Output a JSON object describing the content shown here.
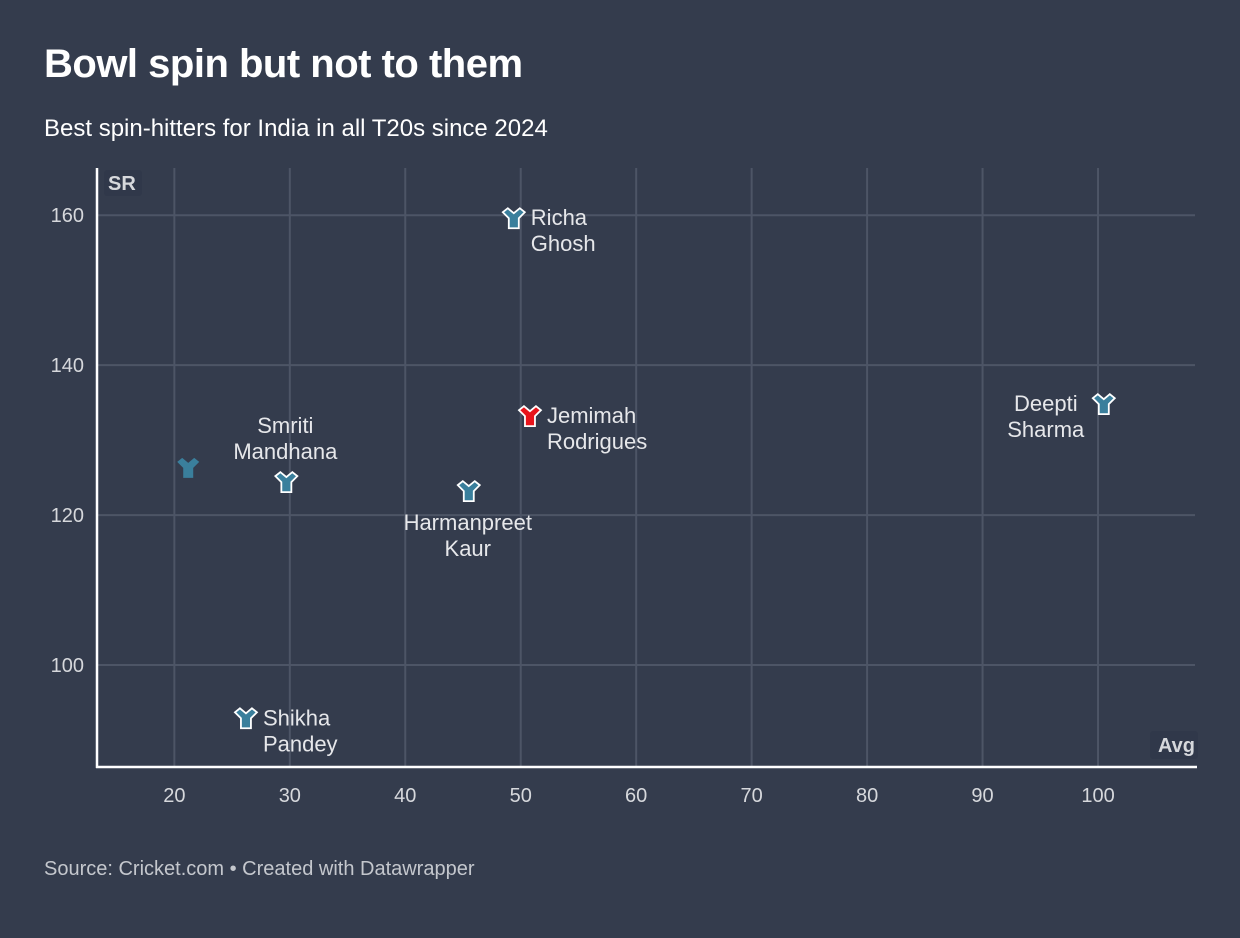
{
  "header": {
    "title": "Bowl spin but not to them",
    "subtitle": "Best spin-hitters for India in all T20s since 2024"
  },
  "footer": {
    "text": "Source: Cricket.com • Created with Datawrapper"
  },
  "colors": {
    "background": "#343c4d",
    "default_marker": "#3a7f9c",
    "highlight_marker": "#e8141b",
    "marker_stroke": "#ffffff",
    "grid": "#4d5566"
  },
  "chart_data": {
    "type": "scatter",
    "title": "Bowl spin but not to them",
    "subtitle": "Best spin-hitters for India in all T20s since 2024",
    "xlabel": "Avg",
    "ylabel": "SR",
    "xlim": [
      13.3,
      108.4
    ],
    "ylim": [
      86.4,
      166.3
    ],
    "xticks": [
      20,
      30,
      40,
      50,
      60,
      70,
      80,
      90,
      100
    ],
    "yticks": [
      100,
      120,
      140,
      160
    ],
    "grid": true,
    "marker": "y-shape (cricket-shirt) symbol",
    "points": [
      {
        "name": "Richa\nGhosh",
        "x": 49.4,
        "y": 159.6,
        "highlight": false,
        "label_pos": "right",
        "stroked": true
      },
      {
        "name": "Jemimah\nRodrigues",
        "x": 50.8,
        "y": 133.2,
        "highlight": true,
        "label_pos": "right",
        "stroked": true
      },
      {
        "name": "Deepti\nSharma",
        "x": 100.5,
        "y": 134.8,
        "highlight": false,
        "label_pos": "left",
        "stroked": true
      },
      {
        "name": "",
        "x": 21.2,
        "y": 126.3,
        "highlight": false,
        "label_pos": "none",
        "stroked": false
      },
      {
        "name": "Smriti\nMandhana",
        "x": 29.7,
        "y": 124.4,
        "highlight": false,
        "label_pos": "top",
        "stroked": true
      },
      {
        "name": "Harmanpreet\nKaur",
        "x": 45.5,
        "y": 123.2,
        "highlight": false,
        "label_pos": "bottom",
        "stroked": true
      },
      {
        "name": "Shikha\nPandey",
        "x": 26.2,
        "y": 92.9,
        "highlight": false,
        "label_pos": "right",
        "stroked": true
      }
    ],
    "source": "Cricket.com"
  }
}
